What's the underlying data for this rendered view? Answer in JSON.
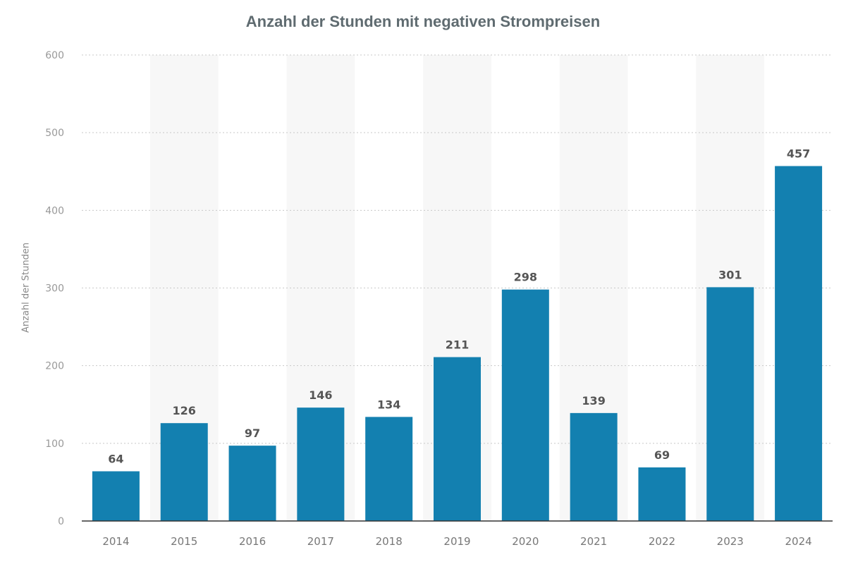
{
  "chart_data": {
    "type": "bar",
    "title": "Anzahl der Stunden mit negativen Strompreisen",
    "xlabel": "",
    "ylabel": "Anzahl der Stunden",
    "categories": [
      "2014",
      "2015",
      "2016",
      "2017",
      "2018",
      "2019",
      "2020",
      "2021",
      "2022",
      "2023",
      "2024"
    ],
    "values": [
      64,
      126,
      97,
      146,
      134,
      211,
      298,
      139,
      69,
      301,
      457
    ],
    "ylim": [
      0,
      600
    ],
    "yticks": [
      0,
      100,
      200,
      300,
      400,
      500,
      600
    ],
    "grid": true,
    "data_labels": true,
    "bar_color": "#1380b0",
    "band_color": "#f7f7f7"
  }
}
